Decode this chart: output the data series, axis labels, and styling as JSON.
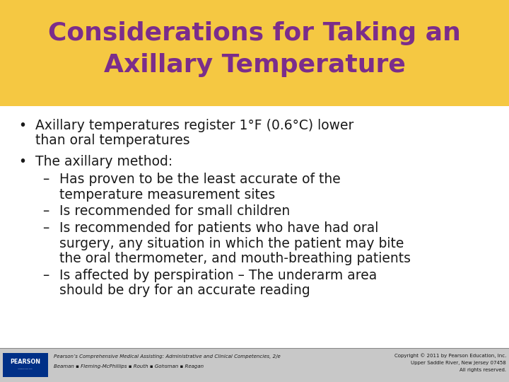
{
  "title_line1": "Considerations for Taking an",
  "title_line2": "Axillary Temperature",
  "title_color": "#7B2D8B",
  "title_bg_color": "#F5C842",
  "bg_color": "#FFFFFF",
  "bullet1_line1": "Axillary temperatures register 1°F (0.6°C) lower",
  "bullet1_line2": "than oral temperatures",
  "bullet2": "The axillary method:",
  "sub1_line1": "Has proven to be the least accurate of the",
  "sub1_line2": "temperature measurement sites",
  "sub2": "Is recommended for small children",
  "sub3_line1": "Is recommended for patients who have had oral",
  "sub3_line2": "surgery, any situation in which the patient may bite",
  "sub3_line3": "the oral thermometer, and mouth-breathing patients",
  "sub4_line1": "Is affected by perspiration – The underarm area",
  "sub4_line2": "should be dry for an accurate reading",
  "footer_left_line1": "Pearson’s Comprehensive Medical Assisting: Administrative and Clinical Competencies, 2/e",
  "footer_left_line2": "Beaman ▪ Fleming-McPhillips ▪ Routh ▪ Gohsman ▪ Reagan",
  "footer_right_line1": "Copyright © 2011 by Pearson Education, Inc.",
  "footer_right_line2": "Upper Saddle River, New Jersey 07458",
  "footer_right_line3": "All rights reserved.",
  "footer_bg_color": "#C8C8C8",
  "text_color": "#1A1A1A",
  "pearson_bg": "#003087",
  "title_fs": 26,
  "body_fs": 13.5,
  "footer_fs": 5.0
}
